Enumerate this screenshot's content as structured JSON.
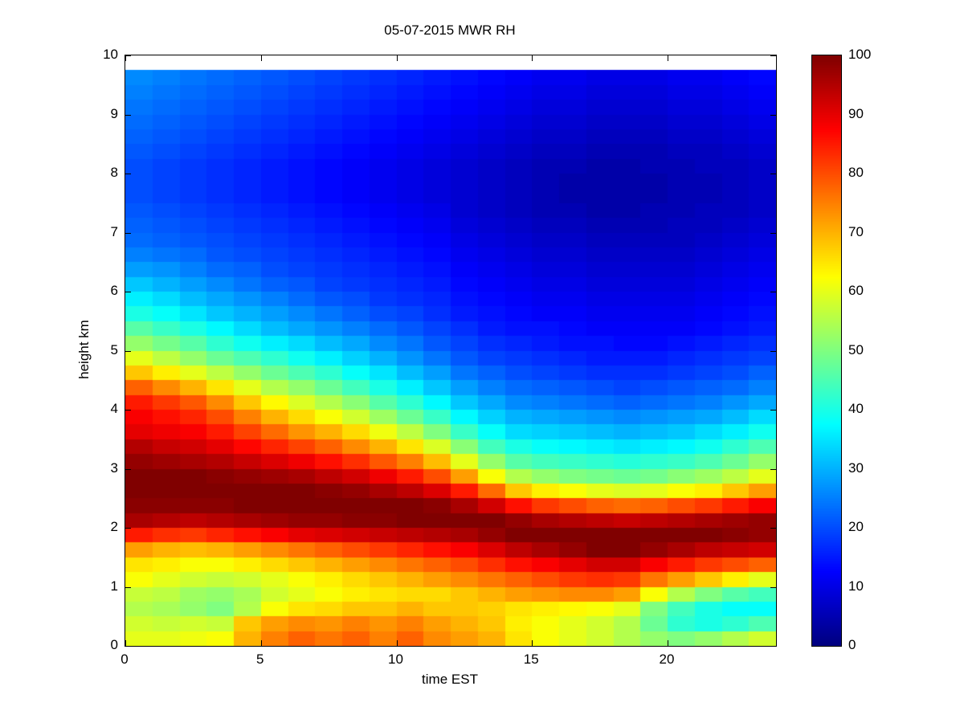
{
  "figure": {
    "title": "05-07-2015 MWR RH",
    "xlabel": "time EST",
    "ylabel": "height km"
  },
  "chart_data": {
    "type": "heatmap",
    "title": "05-07-2015 MWR RH",
    "xlabel": "time EST",
    "ylabel": "height km",
    "colormap": "jet",
    "grid": false,
    "xlim": [
      0,
      24
    ],
    "ylim": [
      0,
      10
    ],
    "x_ticks": [
      0,
      5,
      10,
      15,
      20
    ],
    "y_ticks": [
      0,
      1,
      2,
      3,
      4,
      5,
      6,
      7,
      8,
      9,
      10
    ],
    "colorbar": {
      "min": 0,
      "max": 100,
      "ticks": [
        0,
        10,
        20,
        30,
        40,
        50,
        60,
        70,
        80,
        90,
        100
      ],
      "position": "right"
    },
    "x_hours": [
      0,
      1,
      2,
      3,
      4,
      5,
      6,
      7,
      8,
      9,
      10,
      11,
      12,
      13,
      14,
      15,
      16,
      17,
      18,
      19,
      20,
      21,
      22,
      23
    ],
    "y_levels_km": {
      "start": 0.0,
      "step": 0.25,
      "count": 39,
      "top_of_data": 9.75
    },
    "units": "RH percent",
    "values_note": "columns_by_hour[h] lists RH(%) for height bins bottom(0km) to top(9.75km)",
    "columns_by_hour": [
      [
        60,
        58,
        55,
        57,
        62,
        65,
        72,
        85,
        96,
        99,
        100,
        100,
        98,
        95,
        90,
        88,
        85,
        78,
        68,
        60,
        52,
        46,
        40,
        36,
        32,
        28,
        25,
        23,
        22,
        21,
        20,
        20,
        20,
        21,
        22,
        23,
        24,
        25,
        26
      ],
      [
        60,
        57,
        54,
        56,
        60,
        64,
        70,
        83,
        95,
        99,
        100,
        100,
        97,
        93,
        89,
        86,
        82,
        74,
        64,
        56,
        49,
        43,
        38,
        34,
        30,
        27,
        24,
        22,
        21,
        20,
        19,
        19,
        19,
        20,
        21,
        22,
        23,
        24,
        25
      ],
      [
        61,
        58,
        52,
        53,
        58,
        62,
        69,
        82,
        94,
        99,
        100,
        100,
        96,
        92,
        88,
        84,
        79,
        70,
        60,
        52,
        46,
        40,
        35,
        31,
        28,
        25,
        23,
        21,
        20,
        19,
        18,
        18,
        18,
        19,
        20,
        21,
        22,
        23,
        24
      ],
      [
        62,
        57,
        50,
        52,
        57,
        62,
        70,
        84,
        95,
        99,
        100,
        99,
        95,
        90,
        85,
        80,
        74,
        65,
        56,
        48,
        42,
        37,
        32,
        29,
        26,
        23,
        21,
        20,
        19,
        18,
        17,
        17,
        17,
        18,
        19,
        20,
        21,
        22,
        23
      ],
      [
        70,
        68,
        55,
        54,
        58,
        64,
        72,
        86,
        96,
        100,
        100,
        98,
        93,
        87,
        81,
        75,
        68,
        60,
        52,
        45,
        39,
        34,
        30,
        27,
        24,
        22,
        20,
        19,
        18,
        17,
        16,
        16,
        16,
        17,
        18,
        19,
        20,
        21,
        22
      ],
      [
        75,
        72,
        62,
        58,
        60,
        66,
        74,
        88,
        97,
        100,
        100,
        97,
        91,
        84,
        77,
        70,
        63,
        55,
        48,
        42,
        36,
        31,
        28,
        25,
        22,
        20,
        19,
        18,
        17,
        16,
        15,
        15,
        15,
        16,
        17,
        18,
        19,
        20,
        21
      ],
      [
        78,
        74,
        65,
        60,
        62,
        68,
        76,
        90,
        98,
        100,
        100,
        96,
        89,
        81,
        73,
        66,
        59,
        52,
        45,
        39,
        34,
        29,
        26,
        23,
        21,
        19,
        18,
        17,
        16,
        15,
        14,
        14,
        14,
        15,
        16,
        17,
        18,
        19,
        20
      ],
      [
        76,
        73,
        66,
        62,
        64,
        70,
        78,
        91,
        98,
        100,
        99,
        94,
        86,
        78,
        70,
        62,
        55,
        48,
        42,
        36,
        31,
        27,
        24,
        21,
        19,
        18,
        17,
        16,
        15,
        14,
        13,
        13,
        13,
        14,
        15,
        16,
        17,
        18,
        19
      ],
      [
        78,
        75,
        68,
        64,
        66,
        72,
        80,
        92,
        99,
        100,
        98,
        92,
        83,
        74,
        66,
        58,
        51,
        44,
        38,
        33,
        29,
        25,
        22,
        20,
        18,
        17,
        16,
        15,
        14,
        13,
        12,
        12,
        12,
        13,
        14,
        15,
        16,
        17,
        18
      ],
      [
        75,
        73,
        68,
        65,
        68,
        74,
        82,
        93,
        99,
        100,
        96,
        89,
        79,
        70,
        61,
        53,
        46,
        40,
        35,
        30,
        26,
        23,
        20,
        18,
        17,
        16,
        15,
        14,
        13,
        12,
        11,
        11,
        11,
        12,
        13,
        14,
        15,
        16,
        17
      ],
      [
        78,
        75,
        70,
        66,
        70,
        76,
        84,
        94,
        100,
        100,
        94,
        85,
        75,
        65,
        56,
        48,
        42,
        36,
        31,
        27,
        24,
        21,
        19,
        17,
        16,
        15,
        14,
        13,
        12,
        11,
        10,
        10,
        10,
        11,
        12,
        13,
        14,
        15,
        16
      ],
      [
        74,
        72,
        68,
        66,
        72,
        78,
        86,
        95,
        100,
        99,
        91,
        80,
        69,
        59,
        50,
        43,
        37,
        32,
        28,
        24,
        21,
        19,
        17,
        16,
        15,
        14,
        13,
        12,
        11,
        10,
        9,
        9,
        9,
        10,
        11,
        12,
        13,
        14,
        15
      ],
      [
        72,
        70,
        68,
        68,
        74,
        80,
        88,
        96,
        100,
        96,
        85,
        72,
        60,
        51,
        43,
        37,
        32,
        28,
        24,
        21,
        19,
        17,
        15,
        14,
        13,
        12,
        11,
        10,
        9,
        8,
        8,
        8,
        8,
        9,
        10,
        11,
        12,
        13,
        14
      ],
      [
        70,
        68,
        67,
        70,
        76,
        83,
        91,
        98,
        100,
        92,
        77,
        62,
        52,
        44,
        38,
        33,
        29,
        25,
        22,
        19,
        17,
        15,
        14,
        13,
        12,
        11,
        10,
        9,
        8,
        7,
        7,
        7,
        7,
        8,
        9,
        10,
        11,
        12,
        13
      ],
      [
        65,
        64,
        65,
        72,
        78,
        86,
        94,
        100,
        98,
        86,
        68,
        55,
        46,
        40,
        34,
        30,
        26,
        23,
        20,
        18,
        16,
        14,
        13,
        12,
        11,
        10,
        9,
        8,
        7,
        6,
        6,
        6,
        6,
        7,
        8,
        9,
        10,
        11,
        12
      ],
      [
        62,
        62,
        64,
        73,
        80,
        88,
        96,
        100,
        96,
        82,
        64,
        52,
        44,
        38,
        33,
        29,
        25,
        22,
        19,
        17,
        15,
        14,
        12,
        11,
        10,
        9,
        8,
        7,
        6,
        5,
        5,
        5,
        5,
        6,
        7,
        8,
        9,
        10,
        11
      ],
      [
        60,
        60,
        63,
        74,
        82,
        90,
        98,
        100,
        95,
        80,
        62,
        50,
        43,
        37,
        32,
        28,
        24,
        21,
        18,
        16,
        14,
        13,
        12,
        11,
        10,
        9,
        8,
        7,
        6,
        5,
        4,
        4,
        5,
        6,
        7,
        8,
        9,
        10,
        11
      ],
      [
        58,
        58,
        62,
        74,
        83,
        92,
        100,
        100,
        94,
        78,
        60,
        49,
        42,
        36,
        31,
        27,
        23,
        20,
        17,
        15,
        14,
        12,
        11,
        10,
        9,
        8,
        7,
        6,
        5,
        4,
        4,
        4,
        4,
        5,
        6,
        7,
        8,
        9,
        10
      ],
      [
        55,
        55,
        60,
        72,
        82,
        92,
        100,
        100,
        93,
        77,
        59,
        48,
        41,
        35,
        30,
        26,
        22,
        19,
        17,
        15,
        13,
        12,
        11,
        10,
        9,
        8,
        7,
        6,
        5,
        4,
        4,
        4,
        4,
        5,
        6,
        7,
        8,
        9,
        10
      ],
      [
        52,
        48,
        50,
        62,
        76,
        88,
        98,
        100,
        94,
        78,
        60,
        49,
        42,
        36,
        31,
        27,
        23,
        20,
        17,
        15,
        13,
        12,
        11,
        10,
        9,
        8,
        7,
        6,
        5,
        5,
        4,
        4,
        5,
        5,
        6,
        7,
        8,
        9,
        10
      ],
      [
        50,
        42,
        44,
        55,
        72,
        85,
        96,
        100,
        95,
        80,
        62,
        51,
        43,
        37,
        32,
        28,
        24,
        21,
        18,
        16,
        14,
        12,
        11,
        10,
        9,
        8,
        7,
        6,
        6,
        5,
        5,
        5,
        5,
        6,
        7,
        8,
        9,
        10,
        11
      ],
      [
        52,
        40,
        40,
        50,
        68,
        82,
        94,
        100,
        96,
        82,
        64,
        53,
        45,
        39,
        34,
        29,
        25,
        22,
        19,
        17,
        15,
        13,
        12,
        11,
        10,
        9,
        8,
        7,
        6,
        6,
        5,
        5,
        6,
        6,
        7,
        8,
        9,
        10,
        11
      ],
      [
        55,
        42,
        38,
        46,
        64,
        80,
        93,
        99,
        97,
        85,
        68,
        56,
        48,
        42,
        36,
        31,
        27,
        23,
        20,
        18,
        16,
        14,
        13,
        12,
        11,
        10,
        9,
        8,
        7,
        6,
        6,
        6,
        6,
        7,
        8,
        9,
        10,
        11,
        12
      ],
      [
        58,
        45,
        38,
        44,
        60,
        78,
        92,
        98,
        98,
        88,
        72,
        60,
        52,
        45,
        39,
        34,
        29,
        25,
        22,
        19,
        17,
        15,
        14,
        13,
        12,
        11,
        10,
        9,
        8,
        7,
        7,
        7,
        7,
        8,
        9,
        10,
        11,
        12,
        13
      ]
    ]
  }
}
